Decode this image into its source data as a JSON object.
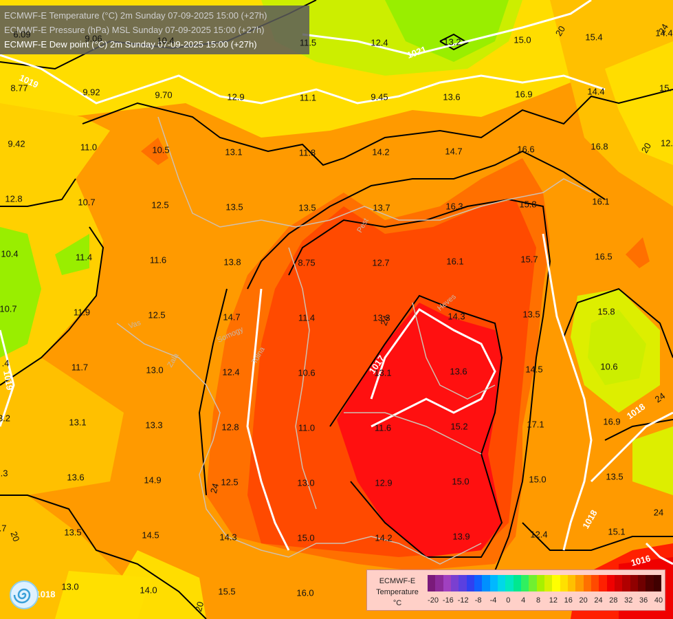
{
  "header": {
    "line1": "ECMWF-E Temperature (°C) 2m Sunday 07-09-2025 15:00 (+27h)",
    "line2": "ECMWF-E Pressure (hPa) MSL Sunday 07-09-2025 15:00 (+27h)",
    "line3": "ECMWF-E Dew point (°C) 2m Sunday 07-09-2025 15:00 (+27h)"
  },
  "isobar_labels": [
    "1021",
    "1019",
    "1017",
    "1018",
    "1016",
    "1018",
    "1018",
    "1019"
  ],
  "isotherm_labels": [
    "20",
    "24",
    "20",
    "24",
    "24",
    "20",
    "24",
    "20",
    "24",
    "20"
  ],
  "place_labels": [
    "Vas",
    "Somogy",
    "Tolna",
    "Zala",
    "Pest",
    "Heves"
  ],
  "dewpoints": [
    "8.77",
    "9.92",
    "9.70",
    "12.9",
    "11.1",
    "9.45",
    "13.6",
    "16.9",
    "14.4",
    "15.",
    "9.42",
    "11.0",
    "10.5",
    "13.1",
    "11.8",
    "14.2",
    "14.7",
    "16.6",
    "16.8",
    "12.",
    "12.8",
    "10.7",
    "12.5",
    "13.5",
    "13.5",
    "13.7",
    "16.3",
    "15.8",
    "16.1",
    "10.4",
    "11.4",
    "11.6",
    "13.8",
    "8.75",
    "12.7",
    "16.1",
    "15.7",
    "16.5",
    "10.7",
    "11.9",
    "12.5",
    "14.7",
    "11.4",
    "13.3",
    "14.3",
    "13.5",
    "15.8",
    ".4",
    "11.7",
    "13.0",
    "12.4",
    "10.6",
    "13.1",
    "13.6",
    "14.5",
    "10.6",
    "3.2",
    "13.1",
    "13.3",
    "12.8",
    "11.0",
    "11.6",
    "15.2",
    "17.1",
    "16.9",
    ".3",
    "13.6",
    "14.9",
    "12.5",
    "13.0",
    "12.9",
    "15.0",
    "15.0",
    "13.5",
    ".7",
    "13.5",
    "14.5",
    "14.3",
    "15.0",
    "14.2",
    "13.9",
    "12.4",
    "15.1",
    "13.0",
    "14.0",
    "15.5",
    "16.0",
    "6.09",
    "9.06",
    "10.4",
    "11.5",
    "12.4",
    "13.2",
    "15.0",
    "15.4",
    "14.4"
  ],
  "colorbar": {
    "title_line1": "ECMWF-E",
    "title_line2": "Temperature",
    "title_line3": "°C",
    "ticks": [
      "-20",
      "-16",
      "-12",
      "-8",
      "-4",
      "0",
      "4",
      "8",
      "12",
      "16",
      "20",
      "24",
      "28",
      "32",
      "36",
      "40"
    ],
    "colors": [
      "#7a1a7a",
      "#8c2a9a",
      "#a040c0",
      "#7a40d0",
      "#5a40e0",
      "#3040f0",
      "#1060ff",
      "#0090ff",
      "#00b8ff",
      "#00d8e8",
      "#00e8c0",
      "#00e890",
      "#30f060",
      "#70f030",
      "#a8f000",
      "#d8f000",
      "#ffff00",
      "#ffe000",
      "#ffc000",
      "#ff9a00",
      "#ff7000",
      "#ff4a00",
      "#ff2000",
      "#f00000",
      "#d00000",
      "#b00000",
      "#900000",
      "#700000",
      "#500000",
      "#400000"
    ]
  },
  "colors": {
    "hot": "#ff1010",
    "warm_red": "#ff3c00",
    "warm": "#ff7000",
    "mild": "#ff9a00",
    "light_orange": "#ffc000",
    "yellow": "#ffdd00",
    "yellowgreen": "#ccee00",
    "green": "#99ee00"
  },
  "icons": {
    "logo": "ecmwf-spiral-logo"
  }
}
